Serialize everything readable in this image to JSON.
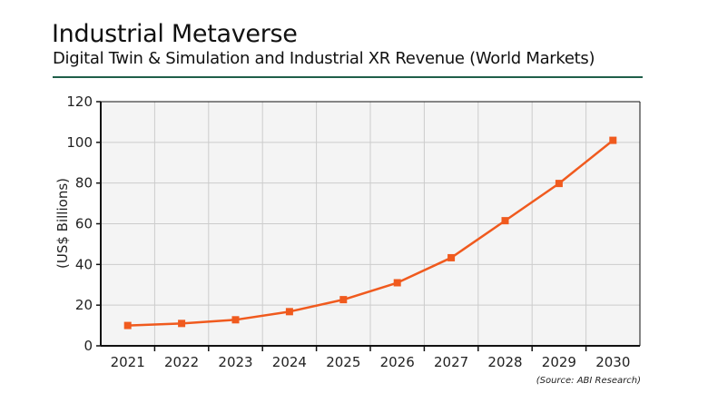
{
  "header": {
    "title": "Industrial Metaverse",
    "subtitle": "Digital Twin & Simulation and Industrial XR Revenue (World Markets)"
  },
  "source": "(Source: ABI Research)",
  "colors": {
    "line": "#f05a1e",
    "divider": "#1f5f4a",
    "plot_bg": "#f4f4f4",
    "grid": "#cccccc"
  },
  "chart_data": {
    "type": "line",
    "title": "Industrial Metaverse",
    "subtitle": "Digital Twin & Simulation and Industrial XR Revenue (World Markets)",
    "xlabel": "",
    "ylabel": "(US$ Billions)",
    "categories": [
      "2021",
      "2022",
      "2023",
      "2024",
      "2025",
      "2026",
      "2027",
      "2028",
      "2029",
      "2030"
    ],
    "series": [
      {
        "name": "Revenue",
        "values": [
          10,
          11,
          12.8,
          16.8,
          22.7,
          31,
          43.3,
          61.5,
          79.8,
          101
        ]
      }
    ],
    "ylim": [
      0,
      120
    ],
    "yticks": [
      0,
      20,
      40,
      60,
      80,
      100,
      120
    ],
    "grid": true,
    "legend": "none",
    "marker": "square",
    "annotation": "(Source: ABI Research)"
  }
}
